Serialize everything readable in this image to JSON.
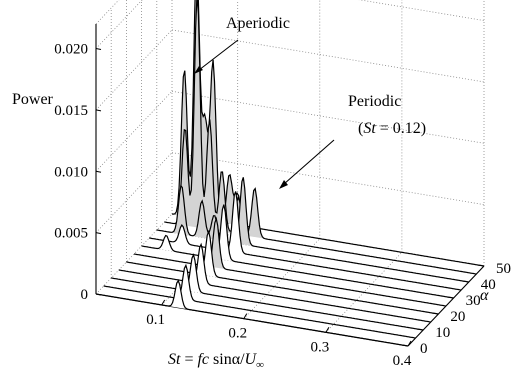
{
  "chart_data": {
    "type": "waterfall-3d",
    "title": "",
    "z_label": "Power",
    "z_ticks": [
      "0",
      "0.005",
      "0.010",
      "0.015",
      "0.020"
    ],
    "z_range": [
      0,
      0.022
    ],
    "x_label": "St = fc sinα/U∞",
    "x_label_parts": {
      "st": "St",
      "eq": " = ",
      "fc": "fc",
      "rest": " sinα/",
      "u": "U",
      "sub": "∞"
    },
    "x_ticks": [
      "0.1",
      "0.2",
      "0.3",
      "0.4"
    ],
    "x_range": [
      0.02,
      0.4
    ],
    "y_label": "α",
    "y_ticks": [
      "0",
      "10",
      "20",
      "30",
      "40",
      "50"
    ],
    "y_range": [
      0,
      50
    ],
    "grid": true,
    "series": [
      {
        "alpha": 0,
        "shaded": false,
        "peaks": [
          [
            0.12,
            0.0022
          ]
        ]
      },
      {
        "alpha": 5,
        "shaded": false,
        "peaks": [
          [
            0.12,
            0.0028
          ]
        ]
      },
      {
        "alpha": 10,
        "shaded": false,
        "peaks": [
          [
            0.12,
            0.003
          ]
        ]
      },
      {
        "alpha": 15,
        "shaded": false,
        "peaks": [
          [
            0.12,
            0.0032
          ]
        ]
      },
      {
        "alpha": 20,
        "shaded": false,
        "peaks": [
          [
            0.12,
            0.0036
          ]
        ]
      },
      {
        "alpha": 25,
        "shaded": true,
        "peaks": [
          [
            0.12,
            0.004
          ]
        ]
      },
      {
        "alpha": 30,
        "shaded": false,
        "peaks": [
          [
            0.12,
            0.0045
          ],
          [
            0.05,
            0.0012
          ]
        ]
      },
      {
        "alpha": 35,
        "shaded": false,
        "peaks": [
          [
            0.125,
            0.005
          ],
          [
            0.06,
            0.0015
          ]
        ]
      },
      {
        "alpha": 40,
        "shaded": true,
        "peaks": [
          [
            0.125,
            0.0055
          ],
          [
            0.05,
            0.004
          ],
          [
            0.075,
            0.003
          ],
          [
            0.09,
            0.002
          ]
        ]
      },
      {
        "alpha": 45,
        "shaded": true,
        "peaks": [
          [
            0.045,
            0.008
          ],
          [
            0.06,
            0.019
          ],
          [
            0.075,
            0.009
          ],
          [
            0.09,
            0.005
          ],
          [
            0.11,
            0.003
          ],
          [
            0.13,
            0.004
          ]
        ]
      },
      {
        "alpha": 50,
        "shaded": true,
        "peaks": [
          [
            0.035,
            0.012
          ],
          [
            0.05,
            0.021
          ],
          [
            0.06,
            0.008
          ],
          [
            0.07,
            0.013
          ],
          [
            0.09,
            0.004
          ],
          [
            0.1,
            0.0025
          ]
        ]
      }
    ],
    "annotations": [
      {
        "text": "Aperiodic"
      },
      {
        "text": "Periodic"
      },
      {
        "text_open": "(",
        "st": "St",
        "rest": " = 0.12)"
      }
    ]
  }
}
